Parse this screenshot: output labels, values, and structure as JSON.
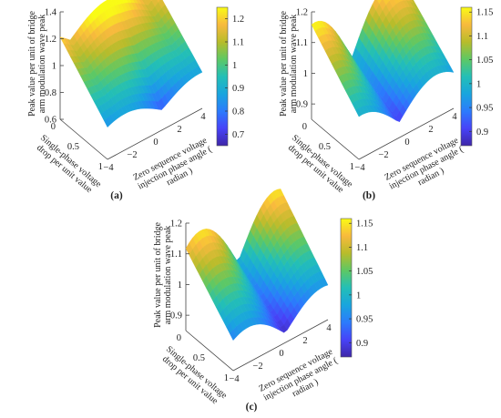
{
  "figure": {
    "panels": [
      {
        "label": "(a)"
      },
      {
        "label": "(b)"
      },
      {
        "label": "(c)"
      }
    ]
  },
  "colormap": [
    "#3e26a8",
    "#4743f8",
    "#2b7bfc",
    "#19a5de",
    "#23bfb6",
    "#5ec864",
    "#b8bc2b",
    "#f8ba3d",
    "#f9fb15"
  ],
  "chart_data": [
    {
      "type": "surface3d",
      "panel": "(a)",
      "zlabel": "Peak value per unit of bridge arm modulation wave peak",
      "xlabel": "Single-phase voltage drop per unit value",
      "ylabel": "Zero sequence voltage injection phase angle ( radian )",
      "z_ticks": [
        "0.6",
        "0.8",
        "1",
        "1.2",
        "1.4"
      ],
      "x_ticks": [
        "0",
        "0.5",
        "1"
      ],
      "y_ticks": [
        "−4",
        "−2",
        "0",
        "2",
        "4"
      ],
      "x_range": [
        0,
        1
      ],
      "y_range": [
        -4,
        4
      ],
      "z_range": [
        0.6,
        1.4
      ],
      "colorbar_ticks": [
        "0.7",
        "0.8",
        "0.9",
        "1",
        "1.1",
        "1.2"
      ],
      "colorbar_range": [
        0.65,
        1.25
      ]
    },
    {
      "type": "surface3d",
      "panel": "(b)",
      "zlabel": "Peak value per unit of bridge arm modulation wave peak",
      "xlabel": "Single-phase voltage drop per unit value",
      "ylabel": "Zero sequence voltage injection phase angle ( radian )",
      "z_ticks": [
        "0.9",
        "1",
        "1.1",
        "1.2"
      ],
      "x_ticks": [
        "0",
        "0.5",
        "1"
      ],
      "y_ticks": [
        "−4",
        "−2",
        "0",
        "2",
        "4"
      ],
      "x_range": [
        0,
        1
      ],
      "y_range": [
        -4,
        4
      ],
      "z_range": [
        0.85,
        1.2
      ],
      "colorbar_ticks": [
        "0.9",
        "0.95",
        "1",
        "1.05",
        "1.1",
        "1.15"
      ],
      "colorbar_range": [
        0.87,
        1.16
      ]
    },
    {
      "type": "surface3d",
      "panel": "(c)",
      "zlabel": "Peak value per unit of bridge arm modulation wave peak",
      "xlabel": "Single-phase voltage drop per unit value",
      "ylabel": "Zero sequence voltage injection phase angle ( radian )",
      "z_ticks": [
        "0.9",
        "1",
        "1.1",
        "1.2"
      ],
      "x_ticks": [
        "0",
        "0.5",
        "1"
      ],
      "y_ticks": [
        "−4",
        "−2",
        "0",
        "2",
        "4"
      ],
      "x_range": [
        0,
        1
      ],
      "y_range": [
        -4,
        4
      ],
      "z_range": [
        0.85,
        1.2
      ],
      "colorbar_ticks": [
        "0.9",
        "0.95",
        "1",
        "1.05",
        "1.1",
        "1.15"
      ],
      "colorbar_range": [
        0.87,
        1.16
      ]
    }
  ]
}
